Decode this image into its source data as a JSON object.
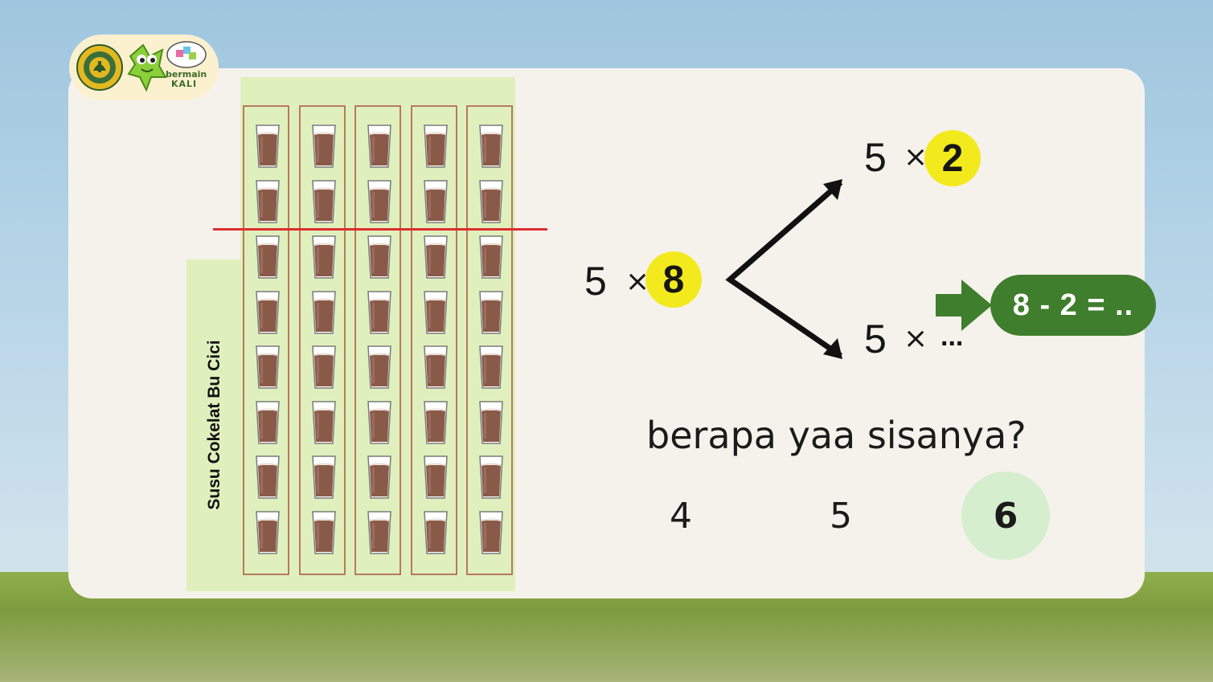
{
  "brand": {
    "line1": "bermain",
    "line2": "KALI"
  },
  "panel": {
    "label": "Susu Cokelat Bu Cici",
    "columns": 5,
    "rows": 8
  },
  "equation": {
    "left": {
      "base": "5",
      "op": "×",
      "factor": "8"
    },
    "top": {
      "base": "5",
      "op": "×",
      "factor": "2"
    },
    "bottom": {
      "base": "5",
      "op": "×",
      "factor": "..."
    }
  },
  "hint": {
    "text": "8 - 2 = .."
  },
  "question": {
    "text": "berapa yaa sisanya?"
  },
  "choices": [
    {
      "label": "4",
      "selected": false
    },
    {
      "label": "5",
      "selected": false
    },
    {
      "label": "6",
      "selected": true
    }
  ],
  "colors": {
    "highlight": "#f3ea1d",
    "panel": "#e0f0bd",
    "hint_pill": "#3f7e2c",
    "cut_line": "#dc2f2f",
    "selected_choice": "#d5eecd"
  }
}
